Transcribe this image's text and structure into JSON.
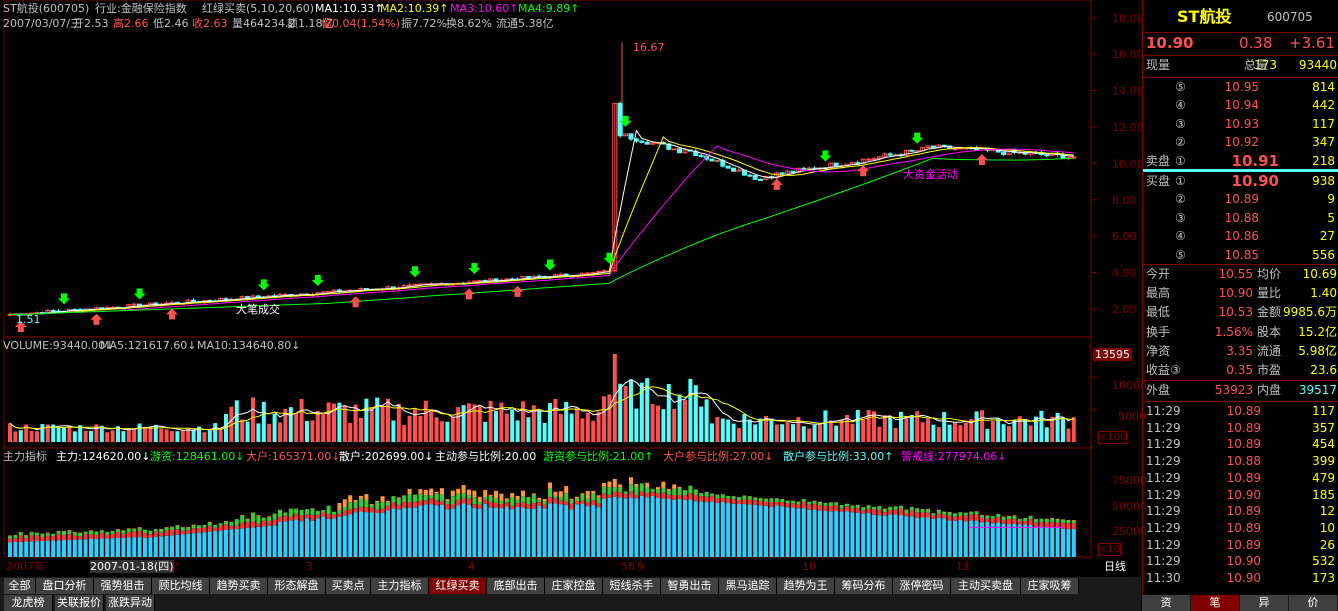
{
  "header": {
    "name": "ST航投(600705)",
    "industry": "行业:金融保险指数",
    "indicator": "红绿买卖(5,10,20,60)",
    "ma1": "MA1:10.33↑",
    "ma2": "MA2:10.39↑",
    "ma3": "MA3:10.60↑",
    "ma4": "MA4:9.89↑",
    "date": "2007/03/07/三",
    "open": "开2.53",
    "high": "高2.66",
    "low": "低2.46",
    "close": "收2.63",
    "vol": "量464234.2",
    "amt": "额1.18亿",
    "chg": "幅0.04(1.54%)",
    "amp": "振7.72%",
    "turn": "换8.62%",
    "float": "流通5.38亿"
  },
  "price_axis": [
    "18.00",
    "16.00",
    "14.00",
    "12.00",
    "10.00",
    "8.00",
    "6.00",
    "4.00",
    "2.00"
  ],
  "annotations": {
    "peak": "16.67",
    "low": "1.51",
    "label_big": "大笔成交",
    "label_fund": "大资金活动"
  },
  "volume": {
    "legend_vol": "VOLUME:93440.00↓",
    "legend_ma5": "MA5:121617.60↓",
    "legend_ma10": "MA10:134640.80↓",
    "axis_top": "13595",
    "axis": [
      "10000",
      "5000"
    ],
    "unit": "×100"
  },
  "main_ind": {
    "title": "主力指标",
    "zhuli": "主力:124620.00↓",
    "youzi": "游资:128461.00↓",
    "dahu": "大户:165371.00↓",
    "sanhu": "散户:202699.00↓",
    "zd": "主动参与比例:20.00",
    "yz": "游资参与比例:21.00↑",
    "dh": "大户参与比例:27.00↓",
    "sh": "散户参与比例:33.00↑",
    "jj": "警戒线:277974.06↓",
    "axis": [
      "75000",
      "50000",
      "25000"
    ],
    "unit": "×10"
  },
  "date_axis": {
    "y2007": "2007年",
    "sel": "2007-01-18(四)",
    "m2": "2",
    "m3": "3",
    "m4": "4",
    "m5": "5",
    "m6": "6",
    "m9": "9",
    "m10": "10",
    "m11": "11",
    "period": "日线"
  },
  "tabs": [
    "全部",
    "盘口分析",
    "强势狙击",
    "顾比均线",
    "趋势买卖",
    "形态解盘",
    "买卖点",
    "主力指标",
    "红绿买卖",
    "底部出击",
    "庄家控盘",
    "短线杀手",
    "智勇出击",
    "黑马追踪",
    "趋势为王",
    "筹码分布",
    "涨停密码",
    "主动买卖盘",
    "庄家吸筹"
  ],
  "tabs2": [
    "龙虎榜",
    "关联报价",
    "涨跌异动"
  ],
  "active_tab": "红绿买卖",
  "panel": {
    "title": "ST航投",
    "code": "600705",
    "price": "10.90",
    "chg": "0.38",
    "pct": "+3.61",
    "xs_label": "现量",
    "xs": "173",
    "zl_label": "总量",
    "zl": "93440",
    "sell_label": "卖盘",
    "buy_label": "买盘",
    "sells": [
      {
        "n": "⑤",
        "p": "10.95",
        "v": "814"
      },
      {
        "n": "④",
        "p": "10.94",
        "v": "442"
      },
      {
        "n": "③",
        "p": "10.93",
        "v": "117"
      },
      {
        "n": "②",
        "p": "10.92",
        "v": "347"
      },
      {
        "n": "①",
        "p": "10.91",
        "v": "218"
      }
    ],
    "buys": [
      {
        "n": "①",
        "p": "10.90",
        "v": "938"
      },
      {
        "n": "②",
        "p": "10.89",
        "v": "9"
      },
      {
        "n": "③",
        "p": "10.88",
        "v": "5"
      },
      {
        "n": "④",
        "p": "10.86",
        "v": "27"
      },
      {
        "n": "⑤",
        "p": "10.85",
        "v": "556"
      }
    ],
    "stats": [
      {
        "a": "今开",
        "b": "10.55",
        "c": "均价",
        "d": "10.69"
      },
      {
        "a": "最高",
        "b": "10.90",
        "c": "量比",
        "d": "1.40"
      },
      {
        "a": "最低",
        "b": "10.53",
        "c": "金额",
        "d": "9985.6万"
      },
      {
        "a": "换手",
        "b": "1.56%",
        "c": "股本",
        "d": "15.2亿"
      },
      {
        "a": "净资",
        "b": "3.35",
        "c": "流通",
        "d": "5.98亿"
      },
      {
        "a": "收益③",
        "b": "0.35",
        "c": "市盈",
        "d": "23.6"
      }
    ],
    "wp_label": "外盘",
    "wp": "53923",
    "np_label": "内盘",
    "np": "39517",
    "ticks": [
      {
        "t": "11:29",
        "p": "10.89",
        "v": "117"
      },
      {
        "t": "11:29",
        "p": "10.89",
        "v": "357"
      },
      {
        "t": "11:29",
        "p": "10.89",
        "v": "454"
      },
      {
        "t": "11:29",
        "p": "10.88",
        "v": "399"
      },
      {
        "t": "11:29",
        "p": "10.89",
        "v": "479"
      },
      {
        "t": "11:29",
        "p": "10.90",
        "v": "185"
      },
      {
        "t": "11:29",
        "p": "10.89",
        "v": "12"
      },
      {
        "t": "11:29",
        "p": "10.89",
        "v": "10"
      },
      {
        "t": "11:29",
        "p": "10.89",
        "v": "26"
      },
      {
        "t": "11:29",
        "p": "10.90",
        "v": "532"
      },
      {
        "t": "11:30",
        "p": "10.90",
        "v": "173"
      }
    ],
    "btabs": [
      "资",
      "笔",
      "异",
      "价"
    ]
  },
  "colors": {
    "up": "#ff5050",
    "down": "#54ffff",
    "ma1": "#ffffff",
    "ma2": "#ffff00",
    "ma3": "#ff00ff",
    "ma4": "#00ff00",
    "border": "#800000",
    "grid": "#800000"
  }
}
